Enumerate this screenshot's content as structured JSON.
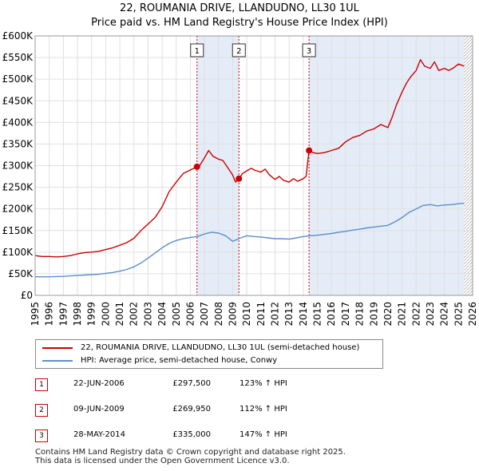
{
  "title": "22, ROUMANIA DRIVE, LLANDUDNO, LL30 1UL",
  "subtitle": "Price paid vs. HM Land Registry's House Price Index (HPI)",
  "colors": {
    "property_line": "#cc0000",
    "hpi_line": "#5b8fc9",
    "shade": "#e4ecf8",
    "grid": "#e0e0e0",
    "vline": "#cc0000",
    "marker_border": "#cc0000"
  },
  "chart_data": {
    "type": "line",
    "title": "22, ROUMANIA DRIVE, LLANDUDNO, LL30 1UL",
    "subtitle": "Price paid vs. HM Land Registry's House Price Index (HPI)",
    "xlabel": "",
    "ylabel": "",
    "xlim": [
      1995,
      2026
    ],
    "ylim": [
      0,
      600000
    ],
    "x_ticks": [
      1995,
      1996,
      1997,
      1998,
      1999,
      2000,
      2001,
      2002,
      2003,
      2004,
      2005,
      2006,
      2007,
      2008,
      2009,
      2010,
      2011,
      2012,
      2013,
      2014,
      2015,
      2016,
      2017,
      2018,
      2019,
      2020,
      2021,
      2022,
      2023,
      2024,
      2025,
      2026
    ],
    "y_ticks": [
      0,
      50000,
      100000,
      150000,
      200000,
      250000,
      300000,
      350000,
      400000,
      450000,
      500000,
      550000,
      600000
    ],
    "y_tick_labels": [
      "£0",
      "£50K",
      "£100K",
      "£150K",
      "£200K",
      "£250K",
      "£300K",
      "£350K",
      "£400K",
      "£450K",
      "£500K",
      "£550K",
      "£600K"
    ],
    "grid": true,
    "shaded_ranges": [
      [
        2006.47,
        2009.44
      ],
      [
        2014.41,
        2025.4
      ]
    ],
    "hatched_after": 2025.4,
    "series": [
      {
        "name": "22, ROUMANIA DRIVE, LLANDUDNO, LL30 1UL (semi-detached house)",
        "x": [
          1995.0,
          1995.5,
          1996.0,
          1996.5,
          1997.0,
          1997.5,
          1998.0,
          1998.5,
          1999.0,
          1999.5,
          2000.0,
          2000.5,
          2001.0,
          2001.5,
          2002.0,
          2002.5,
          2003.0,
          2003.5,
          2004.0,
          2004.5,
          2005.0,
          2005.5,
          2006.0,
          2006.47,
          2006.7,
          2007.0,
          2007.3,
          2007.6,
          2008.0,
          2008.3,
          2008.6,
          2009.0,
          2009.2,
          2009.44,
          2009.7,
          2010.0,
          2010.3,
          2010.6,
          2011.0,
          2011.3,
          2011.6,
          2012.0,
          2012.3,
          2012.6,
          2013.0,
          2013.3,
          2013.6,
          2014.0,
          2014.2,
          2014.41,
          2014.7,
          2015.0,
          2015.5,
          2016.0,
          2016.5,
          2017.0,
          2017.5,
          2018.0,
          2018.5,
          2019.0,
          2019.5,
          2020.0,
          2020.3,
          2020.6,
          2021.0,
          2021.3,
          2021.6,
          2022.0,
          2022.3,
          2022.6,
          2023.0,
          2023.3,
          2023.6,
          2024.0,
          2024.3,
          2024.6,
          2025.0,
          2025.4
        ],
        "values": [
          92000,
          90000,
          90000,
          89000,
          90000,
          92000,
          96000,
          99000,
          100000,
          102000,
          106000,
          110000,
          116000,
          122000,
          132000,
          150000,
          165000,
          180000,
          205000,
          240000,
          262000,
          282000,
          290000,
          297500,
          302000,
          318000,
          335000,
          322000,
          315000,
          312000,
          298000,
          278000,
          262000,
          269950,
          282000,
          288000,
          294000,
          289000,
          285000,
          292000,
          279000,
          268000,
          275000,
          266000,
          262000,
          270000,
          264000,
          270000,
          275000,
          335000,
          330000,
          328000,
          330000,
          335000,
          340000,
          355000,
          365000,
          370000,
          380000,
          385000,
          395000,
          388000,
          412000,
          440000,
          470000,
          490000,
          505000,
          520000,
          545000,
          530000,
          525000,
          540000,
          520000,
          525000,
          520000,
          525000,
          535000,
          530000
        ]
      },
      {
        "name": "HPI: Average price, semi-detached house, Conwy",
        "x": [
          1995.0,
          1995.5,
          1996.0,
          1996.5,
          1997.0,
          1997.5,
          1998.0,
          1998.5,
          1999.0,
          1999.5,
          2000.0,
          2000.5,
          2001.0,
          2001.5,
          2002.0,
          2002.5,
          2003.0,
          2003.5,
          2004.0,
          2004.5,
          2005.0,
          2005.5,
          2006.0,
          2006.5,
          2007.0,
          2007.5,
          2008.0,
          2008.5,
          2009.0,
          2009.5,
          2010.0,
          2010.5,
          2011.0,
          2011.5,
          2012.0,
          2012.5,
          2013.0,
          2013.5,
          2014.0,
          2014.5,
          2015.0,
          2015.5,
          2016.0,
          2016.5,
          2017.0,
          2017.5,
          2018.0,
          2018.5,
          2019.0,
          2019.5,
          2020.0,
          2020.5,
          2021.0,
          2021.5,
          2022.0,
          2022.5,
          2023.0,
          2023.5,
          2024.0,
          2024.5,
          2025.0,
          2025.4
        ],
        "values": [
          43000,
          43000,
          43000,
          43500,
          44000,
          45000,
          46000,
          47000,
          48000,
          49000,
          51000,
          53000,
          56000,
          60000,
          66000,
          75000,
          86000,
          98000,
          110000,
          120000,
          127000,
          131000,
          134000,
          136000,
          142000,
          146000,
          144000,
          138000,
          125000,
          132000,
          138000,
          136000,
          135000,
          133000,
          131000,
          131000,
          130000,
          133000,
          136000,
          138000,
          139000,
          141000,
          143000,
          146000,
          148000,
          151000,
          153000,
          156000,
          158000,
          160000,
          162000,
          170000,
          180000,
          192000,
          200000,
          208000,
          210000,
          207000,
          209000,
          210000,
          212000,
          213000
        ]
      }
    ],
    "sale_markers": [
      {
        "label": "1",
        "x": 2006.47,
        "value": 297500
      },
      {
        "label": "2",
        "x": 2009.44,
        "value": 269950
      },
      {
        "label": "3",
        "x": 2014.41,
        "value": 335000
      }
    ]
  },
  "legend": {
    "property": "22, ROUMANIA DRIVE, LLANDUDNO, LL30 1UL (semi-detached house)",
    "hpi": "HPI: Average price, semi-detached house, Conwy"
  },
  "sales": [
    {
      "num": "1",
      "date": "22-JUN-2006",
      "price": "£297,500",
      "hpi": "123% ↑ HPI"
    },
    {
      "num": "2",
      "date": "09-JUN-2009",
      "price": "£269,950",
      "hpi": "112% ↑ HPI"
    },
    {
      "num": "3",
      "date": "28-MAY-2014",
      "price": "£335,000",
      "hpi": "147% ↑ HPI"
    }
  ],
  "footer": {
    "line1": "Contains HM Land Registry data © Crown copyright and database right 2025.",
    "line2": "This data is licensed under the Open Government Licence v3.0."
  }
}
